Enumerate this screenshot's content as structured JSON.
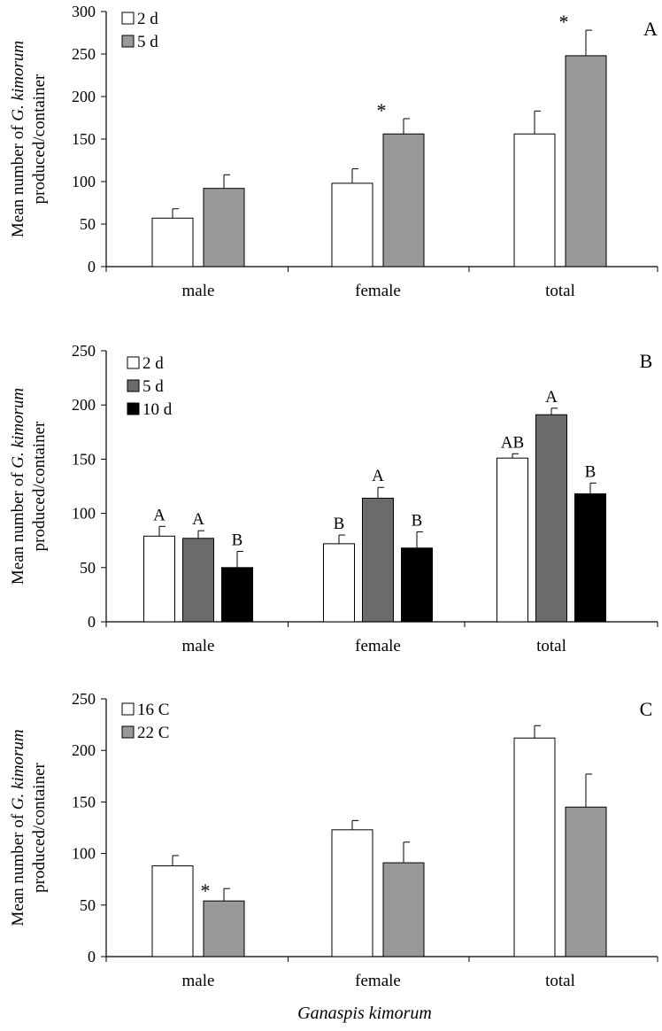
{
  "chart_data": [
    {
      "type": "bar",
      "panel": "A",
      "categories": [
        "male",
        "female",
        "total"
      ],
      "ylabel_lines": [
        "Mean number of G. kimorum",
        "produced/container"
      ],
      "ylabel_italic": "G. kimorum",
      "ylim": [
        0,
        300
      ],
      "yticks": [
        0,
        50,
        100,
        150,
        200,
        250,
        300
      ],
      "legend_position": "top-left",
      "series": [
        {
          "name": "2 d",
          "color": "#ffffff",
          "values": [
            57,
            98,
            156
          ],
          "errors": [
            11,
            17,
            27
          ]
        },
        {
          "name": "5 d",
          "color": "#999999",
          "values": [
            92,
            156,
            248
          ],
          "errors": [
            16,
            18,
            30
          ]
        }
      ],
      "annotations": [
        {
          "category": 1,
          "series": 1,
          "text": "*"
        },
        {
          "category": 2,
          "series": 1,
          "text": "*"
        }
      ]
    },
    {
      "type": "bar",
      "panel": "B",
      "categories": [
        "male",
        "female",
        "total"
      ],
      "ylabel_lines": [
        "Mean number of G. kimorum",
        "produced/container"
      ],
      "ylabel_italic": "G. kimorum",
      "ylim": [
        0,
        250
      ],
      "yticks": [
        0,
        50,
        100,
        150,
        200,
        250
      ],
      "legend_position": "top-left",
      "series": [
        {
          "name": "2 d",
          "color": "#ffffff",
          "values": [
            79,
            72,
            151
          ],
          "errors": [
            9,
            8,
            4
          ]
        },
        {
          "name": "5 d",
          "color": "#6b6b6b",
          "values": [
            77,
            114,
            191
          ],
          "errors": [
            7,
            10,
            6
          ]
        },
        {
          "name": "10 d",
          "color": "#000000",
          "values": [
            50,
            68,
            118
          ],
          "errors": [
            15,
            15,
            10
          ]
        }
      ],
      "annotations": [
        {
          "category": 0,
          "series": 0,
          "text": "A"
        },
        {
          "category": 0,
          "series": 1,
          "text": "A"
        },
        {
          "category": 0,
          "series": 2,
          "text": "B"
        },
        {
          "category": 1,
          "series": 0,
          "text": "B"
        },
        {
          "category": 1,
          "series": 1,
          "text": "A"
        },
        {
          "category": 1,
          "series": 2,
          "text": "B"
        },
        {
          "category": 2,
          "series": 0,
          "text": "AB"
        },
        {
          "category": 2,
          "series": 1,
          "text": "A"
        },
        {
          "category": 2,
          "series": 2,
          "text": "B"
        }
      ]
    },
    {
      "type": "bar",
      "panel": "C",
      "categories": [
        "male",
        "female",
        "total"
      ],
      "ylabel_lines": [
        "Mean number of G. kimorum",
        "produced/container"
      ],
      "ylabel_italic": "G. kimorum",
      "ylim": [
        0,
        250
      ],
      "yticks": [
        0,
        50,
        100,
        150,
        200,
        250
      ],
      "legend_position": "top-left",
      "series": [
        {
          "name": "16 C",
          "color": "#ffffff",
          "values": [
            88,
            123,
            212
          ],
          "errors": [
            10,
            9,
            12
          ]
        },
        {
          "name": "22 C",
          "color": "#999999",
          "values": [
            54,
            91,
            145
          ],
          "errors": [
            12,
            20,
            32
          ]
        }
      ],
      "annotations": [
        {
          "category": 0,
          "series": 1,
          "text": "*"
        }
      ]
    }
  ],
  "figure": {
    "xlabel": "Ganaspis kimorum"
  }
}
